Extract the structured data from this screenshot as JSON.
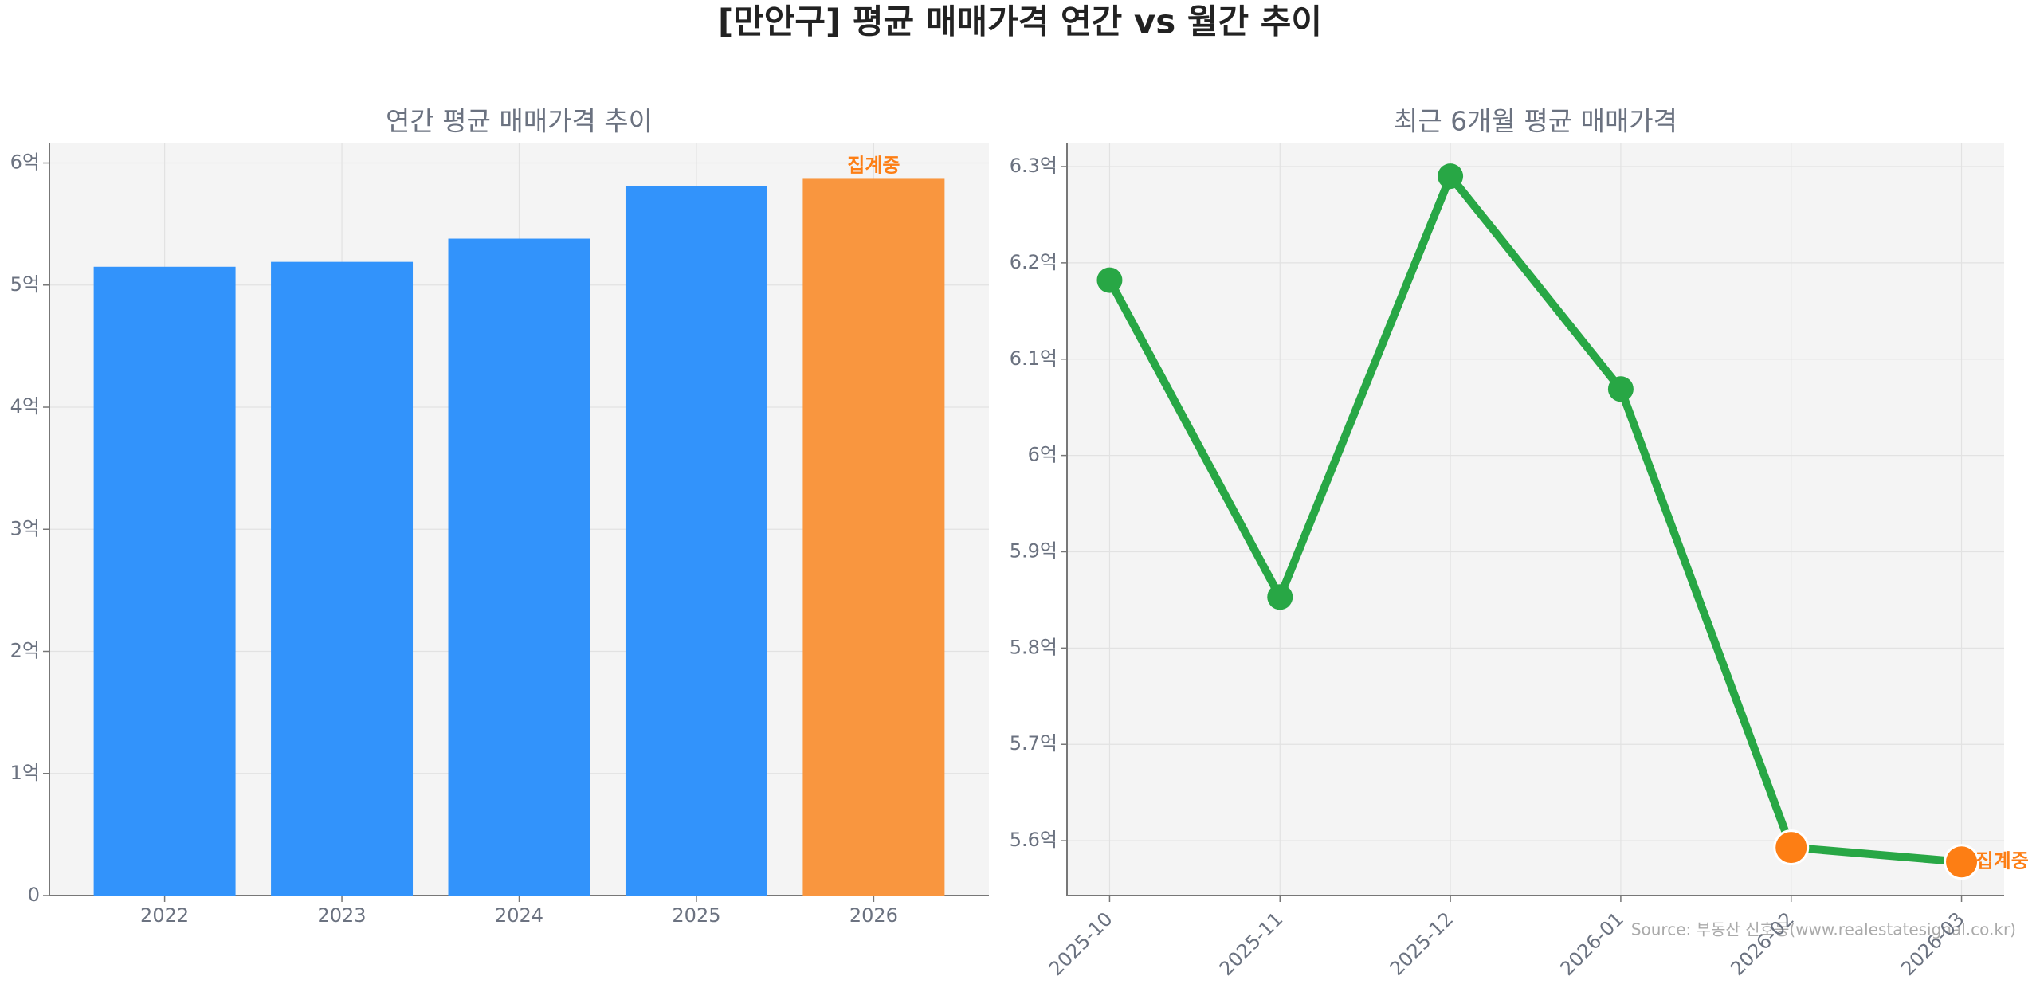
{
  "title": "[만안구] 평균 매매가격 연간 vs 월간 추이",
  "source": "Source: 부동산 신호등(www.realestatesignal.co.kr)",
  "chart_data": [
    {
      "type": "bar",
      "title": "연간 평균 매매가격 추이",
      "categories": [
        "2022",
        "2023",
        "2024",
        "2025",
        "2026"
      ],
      "values": [
        5.15,
        5.19,
        5.38,
        5.81,
        5.87
      ],
      "colors": [
        "#3293fb",
        "#3293fb",
        "#3293fb",
        "#3293fb",
        "#f9963f"
      ],
      "annotation": "집계중",
      "ylim": [
        0,
        6.16
      ],
      "yticks": [
        0,
        {
          "value": 1,
          "label": "1억"
        },
        {
          "value": 2,
          "label": "2억"
        },
        {
          "value": 3,
          "label": "3억"
        },
        {
          "value": 4,
          "label": "4억"
        },
        {
          "value": 5,
          "label": "5억"
        },
        {
          "value": 6,
          "label": "6억"
        }
      ],
      "grid": true
    },
    {
      "type": "line",
      "title": "최근 6개월 평균 매매가격",
      "categories": [
        "2025-10",
        "2025-11",
        "2025-12",
        "2026-01",
        "2026-02",
        "2026-03"
      ],
      "values": [
        6.182,
        5.853,
        6.29,
        6.069,
        5.593,
        5.578
      ],
      "color": "#28a745",
      "point_colors": [
        "#28a745",
        "#28a745",
        "#28a745",
        "#28a745",
        "#fd7e14",
        "#fd7e14"
      ],
      "annotation": "집계중",
      "ylim": [
        5.543,
        6.324
      ],
      "yticks": [
        {
          "value": 5.6,
          "label": "5.6억"
        },
        {
          "value": 5.7,
          "label": "5.7억"
        },
        {
          "value": 5.8,
          "label": "5.8억"
        },
        {
          "value": 5.9,
          "label": "5.9억"
        },
        {
          "value": 6,
          "label": "6억"
        },
        {
          "value": 6.1,
          "label": "6.1억"
        },
        {
          "value": 6.2,
          "label": "6.2억"
        },
        {
          "value": 6.3,
          "label": "6.3억"
        }
      ],
      "grid": true
    }
  ]
}
